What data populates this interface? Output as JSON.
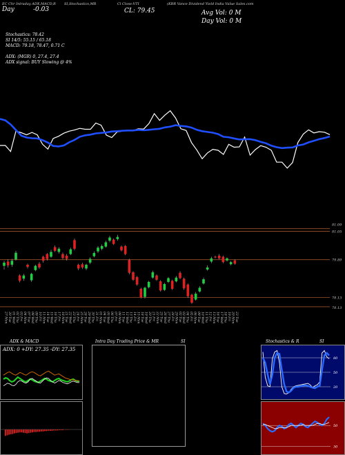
{
  "header": {
    "left_small": "EC Chr Intraday ADX,MACD,R",
    "stoch_small": "SI,Stochastics,MR",
    "close_small": "Cl Close:VTI",
    "title_small": "(KBR Vance Dividend Yield India Value Sales.com",
    "day_label": "Day",
    "day_change": "-0.03",
    "close_label": "CL: 79.45",
    "avg_vol": "Avg Vol: 0  M",
    "day_vol": "Day Vol: 0   M"
  },
  "indicators": {
    "stochastics": "Stochastics: 78.42",
    "si": "SI 14/5: 55.15 / 65.18",
    "macd": "MACD: 79.18, 78.47, 0.71 C",
    "adx": "ADX:                 (MGR) 0, 27.4, 27.4",
    "adx_signal": "ADX  signal:                           BUY Slowing @ 4%"
  },
  "colors": {
    "price_line": "#ffffff",
    "ma_line": "#1f4fff",
    "bull": "#22cc44",
    "bear": "#dd2222",
    "level_line": "#a0522d",
    "adx_green": "#22cc22",
    "adx_orange": "#cc6600",
    "stoch_bg": "#000a6a",
    "macd_bg": "#8b0000"
  },
  "price_axis": [
    "81.09",
    "81.05",
    "79.89",
    "78.13",
    "78.13"
  ],
  "chart_data": [
    {
      "type": "line",
      "series": [
        {
          "values": [
            74.0,
            74.0,
            71.5,
            80.0,
            79.3,
            78.4,
            79.4,
            78.4,
            74.5,
            72.5,
            76.9,
            77.8,
            79.1,
            79.9,
            80.4,
            81.1,
            80.7,
            80.7,
            83.3,
            82.4,
            78.3,
            77.3,
            79.6,
            79.9,
            80.4,
            80.2,
            80.9,
            80.8,
            83.1,
            87.2,
            84.4,
            86.6,
            88.4,
            85.4,
            80.9,
            80.2,
            75.2,
            72.1,
            68.5,
            70.9,
            72.4,
            72.0,
            70.3,
            74.5,
            73.3,
            73.4,
            77.5,
            70.0,
            72.3,
            73.9,
            73.3,
            72.0,
            67.1,
            67.1,
            64.6,
            66.9,
            75.2,
            78.7,
            80.5,
            79.2,
            79.7,
            79.5,
            78.5
          ]
        },
        {
          "values": [
            85.0,
            84.4,
            82.7,
            80.4,
            78.1,
            77.3,
            77.0,
            76.9,
            76.2,
            75.2,
            73.8,
            73.6,
            74.0,
            75.3,
            76.3,
            77.6,
            78.2,
            78.5,
            79.0,
            79.2,
            79.4,
            79.8,
            79.9,
            80.1,
            80.2,
            80.2,
            80.5,
            80.3,
            80.5,
            80.7,
            80.9,
            81.5,
            81.8,
            82.4,
            82.1,
            81.9,
            81.4,
            80.5,
            79.9,
            79.6,
            79.3,
            78.7,
            77.6,
            77.4,
            76.9,
            76.5,
            76.6,
            76.6,
            76.2,
            75.5,
            74.9,
            73.9,
            73.3,
            72.9,
            73.1,
            73.2,
            74.0,
            74.4,
            75.3,
            75.9,
            76.6,
            77.1,
            77.7
          ]
        }
      ],
      "ylim": [
        60,
        100
      ]
    },
    {
      "type": "candlestick",
      "categories": [
        "27 Fri",
        "30 Mon",
        "01 Tue",
        "02 Wed",
        "03 Thu",
        "04 Fri",
        "07 Mon",
        "08 Tue",
        "09 Wed",
        "10 Thu",
        "11 Fri",
        "14 Mon",
        "15 Tue",
        "16 Wed",
        "17 Thu",
        "18 Fri",
        "21 Mon",
        "22 Tue",
        "23 Wed",
        "24 Thu",
        "25 Fri",
        "28 Mon",
        "29 Tue",
        "30 Wed",
        "31 Thu",
        "01 Fri",
        "04 Mon",
        "05 Tue",
        "06 Wed",
        "07 Thu",
        "08 Fri",
        "11 Mon",
        "12 Tue",
        "13 Wed",
        "14 Thu",
        "15 Fri",
        "18 Mon",
        "19 Tue",
        "20 Wed",
        "21 Thu",
        "22 Fri",
        "25 Mon",
        "26 Tue",
        "27 Wed",
        "28 Thu",
        "29 Fri",
        "02 Mon",
        "03 Tue",
        "04 Wed",
        "05 Thu",
        "06 Fri",
        "09 Mon",
        "10 Tue",
        "11 Wed",
        "12 Thu",
        "13 Fri",
        "16 Mon",
        "17 Tue",
        "18 Wed",
        "19 Thu",
        "20 Fri",
        "23 Mon",
        "24 Tue",
        "25 Wed",
        "26 Thu",
        "27 Fri",
        "30 Mon",
        "01 Tue",
        "02 Wed",
        "03 Thu",
        "04 Fri",
        "07 Mon",
        "08 Tue",
        "09 Wed",
        "10 Thu",
        "11 Fri",
        "14 Mon",
        "15 Tue",
        "16 Wed",
        "17 Thu",
        "18 Fri",
        "21 Mon",
        "22 Tue",
        "23 Wed",
        "24 Thu",
        "25 Fri",
        "28 Mon",
        "29 Tue",
        "30 Wed",
        "31 Thu",
        "01 Fri",
        "04 Mon",
        "05 Tue",
        "06 Wed",
        "07 Thu",
        "08 Fri",
        "11 Mon",
        "12 Tue",
        "13 Wed",
        "14 Thu",
        "15 Fri",
        "18 Mon",
        "19 Tue",
        "20 Wed",
        "21 Thu",
        "22 Fri"
      ],
      "tick_labels": [
        "27 Mon",
        "30 Tue",
        "01 Wed",
        "02 Thu",
        "03 Fri",
        "04 Mon",
        "07 Tue",
        "08 Wed",
        "09 Thu",
        "10 Fri",
        "11 Mon",
        "14 Tue",
        "15 Wed",
        "16 Thu",
        "17 Fri",
        "18 Mon",
        "21 Tue",
        "22 Wed",
        "23 Thu",
        "24 Fri",
        "25 Mon",
        "28 Tue",
        "29 Wed",
        "30 Thu",
        "31 Fri",
        "01 Mon",
        "04 Tue",
        "05 Wed",
        "06 Thu",
        "07 Fri",
        "08 Mon",
        "11 Tue",
        "12 Wed",
        "13 Thu",
        "14 Fri",
        "15 Mon",
        "18 Tue",
        "19 Wed",
        "20 Thu",
        "21 Fri",
        "22 Mon",
        "25 Tue",
        "26 Wed",
        "27 Thu",
        "28 Fri",
        "29 Mon",
        "02 Tue",
        "03 Wed",
        "04 Thu",
        "05 Fri",
        "06 Mon",
        "09 Tue",
        "10 Wed",
        "11 Thu",
        "12 Fri",
        "13 Mon",
        "16 Tue",
        "17 Wed",
        "18 Thu",
        "19 Fri",
        "20 Mon",
        "23 Tue"
      ],
      "ylim": [
        78.0,
        81.3
      ],
      "levels": [
        81.05,
        80.95,
        79.89,
        78.48,
        78.13
      ],
      "candles": [
        {
          "o": 79.66,
          "c": 79.78,
          "h": 79.85,
          "l": 79.52
        },
        {
          "o": 79.82,
          "c": 79.68,
          "h": 79.9,
          "l": 79.6
        },
        {
          "o": 79.7,
          "c": 79.85,
          "h": 79.92,
          "l": 79.62
        },
        {
          "o": 79.9,
          "c": 80.15,
          "h": 80.22,
          "l": 79.86
        },
        {
          "o": 79.3,
          "c": 79.1,
          "h": 79.34,
          "l": 79.04
        },
        {
          "o": 79.18,
          "c": 79.3,
          "h": 79.36,
          "l": 79.1
        },
        {
          "o": 79.7,
          "c": 79.62,
          "h": 79.74,
          "l": 79.56
        },
        {
          "o": 79.12,
          "c": 79.36,
          "h": 79.4,
          "l": 79.06
        },
        {
          "o": 79.5,
          "c": 79.66,
          "h": 79.7,
          "l": 79.46
        },
        {
          "o": 79.74,
          "c": 79.6,
          "h": 79.8,
          "l": 79.55
        },
        {
          "o": 80.0,
          "c": 79.85,
          "h": 80.04,
          "l": 79.78
        },
        {
          "o": 80.1,
          "c": 79.92,
          "h": 80.14,
          "l": 79.86
        },
        {
          "o": 80.0,
          "c": 80.18,
          "h": 80.26,
          "l": 79.96
        },
        {
          "o": 80.36,
          "c": 80.22,
          "h": 80.42,
          "l": 80.18
        },
        {
          "o": 80.18,
          "c": 80.3,
          "h": 80.36,
          "l": 80.12
        },
        {
          "o": 80.1,
          "c": 79.95,
          "h": 80.16,
          "l": 79.9
        },
        {
          "o": 80.04,
          "c": 79.92,
          "h": 80.1,
          "l": 79.86
        },
        {
          "o": 80.1,
          "c": 80.28,
          "h": 80.34,
          "l": 80.06
        },
        {
          "o": 80.62,
          "c": 80.3,
          "h": 80.68,
          "l": 80.24
        },
        {
          "o": 79.7,
          "c": 79.56,
          "h": 79.74,
          "l": 79.5
        },
        {
          "o": 79.72,
          "c": 79.6,
          "h": 79.78,
          "l": 79.54
        },
        {
          "o": 79.56,
          "c": 79.7,
          "h": 79.74,
          "l": 79.5
        },
        {
          "o": 79.78,
          "c": 79.92,
          "h": 79.98,
          "l": 79.72
        },
        {
          "o": 80.02,
          "c": 80.14,
          "h": 80.2,
          "l": 79.98
        },
        {
          "o": 80.2,
          "c": 80.34,
          "h": 80.4,
          "l": 80.14
        },
        {
          "o": 80.3,
          "c": 80.4,
          "h": 80.46,
          "l": 80.24
        },
        {
          "o": 80.38,
          "c": 80.54,
          "h": 80.6,
          "l": 80.34
        },
        {
          "o": 80.6,
          "c": 80.72,
          "h": 80.78,
          "l": 80.54
        },
        {
          "o": 80.64,
          "c": 80.48,
          "h": 80.68,
          "l": 80.44
        },
        {
          "o": 80.66,
          "c": 80.74,
          "h": 80.82,
          "l": 80.6
        },
        {
          "o": 80.38,
          "c": 80.24,
          "h": 80.42,
          "l": 80.2
        },
        {
          "o": 80.4,
          "c": 80.1,
          "h": 80.44,
          "l": 80.06
        },
        {
          "o": 79.88,
          "c": 79.4,
          "h": 79.92,
          "l": 79.34
        },
        {
          "o": 79.42,
          "c": 79.14,
          "h": 79.46,
          "l": 79.1
        },
        {
          "o": 79.24,
          "c": 78.96,
          "h": 79.28,
          "l": 78.92
        },
        {
          "o": 78.8,
          "c": 78.48,
          "h": 78.84,
          "l": 78.44
        },
        {
          "o": 78.5,
          "c": 78.84,
          "h": 78.88,
          "l": 78.44
        },
        {
          "o": 78.86,
          "c": 79.06,
          "h": 79.1,
          "l": 78.82
        },
        {
          "o": 79.22,
          "c": 79.42,
          "h": 79.48,
          "l": 79.18
        },
        {
          "o": 79.3,
          "c": 79.14,
          "h": 79.34,
          "l": 79.1
        },
        {
          "o": 79.08,
          "c": 78.74,
          "h": 79.12,
          "l": 78.7
        },
        {
          "o": 78.76,
          "c": 78.98,
          "h": 79.02,
          "l": 78.72
        },
        {
          "o": 79.06,
          "c": 79.2,
          "h": 79.24,
          "l": 79.02
        },
        {
          "o": 79.1,
          "c": 78.8,
          "h": 79.14,
          "l": 78.76
        },
        {
          "o": 79.08,
          "c": 79.22,
          "h": 79.28,
          "l": 79.04
        },
        {
          "o": 79.4,
          "c": 79.2,
          "h": 79.46,
          "l": 79.16
        },
        {
          "o": 79.18,
          "c": 78.82,
          "h": 79.22,
          "l": 78.76
        },
        {
          "o": 78.96,
          "c": 78.52,
          "h": 79.0,
          "l": 78.46
        },
        {
          "o": 78.58,
          "c": 78.28,
          "h": 78.62,
          "l": 78.24
        },
        {
          "o": 78.4,
          "c": 78.62,
          "h": 78.68,
          "l": 78.36
        },
        {
          "o": 78.7,
          "c": 78.84,
          "h": 78.9,
          "l": 78.66
        },
        {
          "o": 79.0,
          "c": 79.16,
          "h": 79.22,
          "l": 78.96
        },
        {
          "o": 79.52,
          "c": 79.6,
          "h": 79.68,
          "l": 79.48
        },
        {
          "o": 79.82,
          "c": 79.94,
          "h": 80.0,
          "l": 79.76
        },
        {
          "o": 80.0,
          "c": 79.98,
          "h": 80.04,
          "l": 79.94
        },
        {
          "o": 80.04,
          "c": 79.94,
          "h": 80.1,
          "l": 79.9
        },
        {
          "o": 80.0,
          "c": 79.8,
          "h": 80.04,
          "l": 79.76
        },
        {
          "o": 79.86,
          "c": 79.94,
          "h": 79.98,
          "l": 79.82
        },
        {
          "o": 79.72,
          "c": 79.8,
          "h": 79.84,
          "l": 79.68
        },
        {
          "o": 79.86,
          "c": 79.74,
          "h": 79.9,
          "l": 79.7
        }
      ]
    },
    {
      "type": "line",
      "series": [
        {
          "values": [
            30,
            32,
            31,
            28,
            26,
            27,
            30,
            33,
            31,
            29,
            27,
            26,
            28,
            30,
            29,
            27,
            26,
            25,
            27,
            29,
            31,
            30,
            28,
            27,
            26,
            28,
            30,
            31,
            29,
            28,
            27,
            26,
            27,
            29,
            30,
            28,
            27,
            27
          ]
        },
        {
          "values": [
            36,
            38,
            40,
            41,
            39,
            37,
            36,
            38,
            40,
            39,
            37,
            36,
            38,
            40,
            41,
            40,
            38,
            36,
            35,
            37,
            39,
            41,
            42,
            40,
            38,
            36,
            37,
            38,
            36,
            34,
            32,
            31,
            30,
            29,
            29,
            28,
            28,
            27
          ]
        },
        {
          "values": [
            20,
            22,
            24,
            23,
            21,
            20,
            22,
            26,
            28,
            27,
            25,
            24,
            26,
            30,
            31,
            29,
            27,
            25,
            24,
            27,
            30,
            32,
            31,
            28,
            26,
            24,
            26,
            28,
            27,
            25,
            24,
            23,
            24,
            26,
            27,
            26,
            25,
            25
          ]
        }
      ],
      "ylim": [
        0,
        60
      ]
    },
    {
      "type": "bar",
      "values": [
        2,
        1.8,
        1.6,
        1.5,
        1.4,
        1.2,
        1.1,
        1.0,
        0.9,
        0.9,
        1.0,
        1.1,
        1.2,
        1.1,
        1.0,
        0.9,
        0.8,
        0.8,
        0.7,
        0.7,
        0.6,
        0.6,
        0.5,
        0.5,
        0.4,
        0.4,
        0.4,
        0.3,
        0.3,
        0.3,
        0.2,
        0.2,
        0.2,
        0.1,
        0.1,
        0.1
      ],
      "ylim": [
        0,
        3
      ]
    },
    {
      "type": "line",
      "series": [
        {
          "values": [
            92,
            40,
            22,
            20,
            78,
            92,
            95,
            70,
            20,
            6,
            5,
            8,
            15,
            20,
            22,
            23,
            24,
            25,
            26,
            27,
            24,
            18,
            22,
            24,
            30,
            90,
            95,
            82,
            78
          ]
        },
        {
          "values": [
            80,
            70,
            45,
            25,
            45,
            80,
            90,
            88,
            55,
            25,
            10,
            8,
            12,
            18,
            20,
            20,
            21,
            22,
            23,
            22,
            20,
            18,
            17,
            20,
            22,
            55,
            85,
            90,
            85
          ]
        }
      ],
      "ylim": [
        0,
        100
      ],
      "ticks": [
        "80",
        "50",
        "20"
      ]
    },
    {
      "type": "line",
      "series": [
        {
          "values": [
            52,
            50,
            47,
            45,
            44,
            45,
            48,
            50,
            49,
            47,
            48,
            51,
            52,
            50,
            48,
            50,
            52,
            51,
            49,
            48,
            50,
            52,
            54,
            53,
            51,
            50,
            52,
            56,
            58
          ]
        },
        {
          "values": [
            51,
            51,
            50,
            49,
            48,
            47,
            47,
            48,
            48,
            48,
            48,
            49,
            50,
            50,
            50,
            50,
            50,
            51,
            50,
            50,
            50,
            50,
            51,
            52,
            52,
            51,
            51,
            52,
            53
          ]
        }
      ],
      "ylim": [
        25,
        70
      ],
      "ticks": [
        "50",
        "30"
      ]
    }
  ],
  "panels": {
    "adx": {
      "title": "ADX  & MACD",
      "readout": "ADX: 0  +DY: 27.35  -DY: 27.35"
    },
    "intraday": {
      "title": "Intra  Day Trading Price  & MR",
      "si_label": "SI"
    },
    "stoch": {
      "title": "Stochastics & R",
      "si_label": "SI"
    }
  }
}
